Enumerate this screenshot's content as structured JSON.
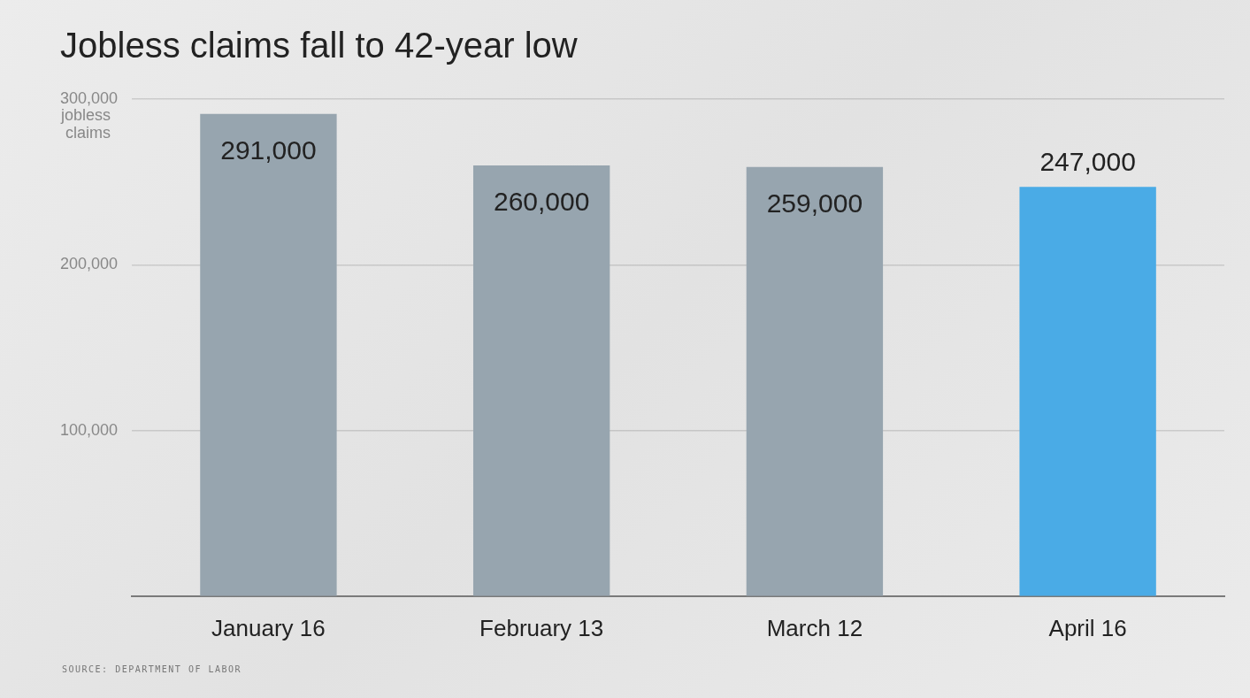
{
  "chart_data": {
    "type": "bar",
    "title": "Jobless claims fall to 42-year low",
    "ylabel": "jobless claims",
    "source": "SOURCE: DEPARTMENT OF LABOR",
    "categories": [
      "January 16",
      "February 13",
      "March 12",
      "April 16"
    ],
    "values": [
      291000,
      260000,
      259000,
      247000
    ],
    "value_labels": [
      "291,000",
      "260,000",
      "259,000",
      "247,000"
    ],
    "data_labels": true,
    "colors": [
      "#97a5af",
      "#97a5af",
      "#97a5af",
      "#4aabe6"
    ],
    "ylim": [
      0,
      300000
    ],
    "yticks": [
      {
        "value": 100000,
        "label": "100,000"
      },
      {
        "value": 200000,
        "label": "200,000"
      },
      {
        "value": 300000,
        "label": "300,000"
      }
    ],
    "grid": true
  }
}
